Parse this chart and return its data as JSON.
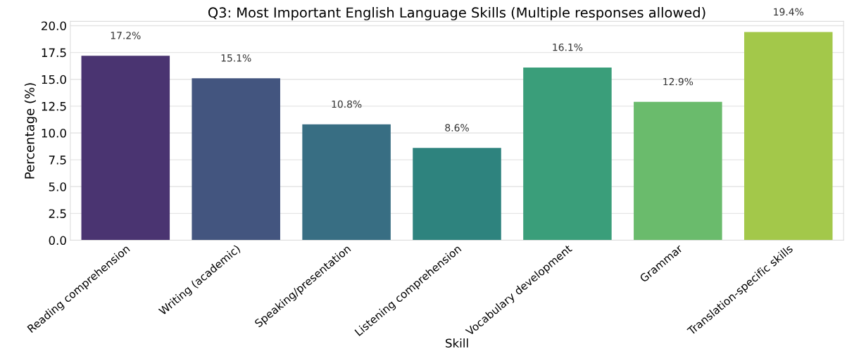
{
  "chart_data": {
    "type": "bar",
    "title": "Q3: Most Important English Language Skills (Multiple responses allowed)",
    "xlabel": "Skill",
    "ylabel": "Percentage (%)",
    "categories": [
      "Reading comprehension",
      "Writing (academic)",
      "Speaking/presentation",
      "Listening comprehension",
      "Vocabulary development",
      "Grammar",
      "Translation-specific skills"
    ],
    "values": [
      17.2,
      15.1,
      10.8,
      8.6,
      16.1,
      12.9,
      19.4
    ],
    "value_labels": [
      "17.2%",
      "15.1%",
      "10.8%",
      "8.6%",
      "16.1%",
      "12.9%",
      "19.4%"
    ],
    "colors": [
      "#4a3471",
      "#43557f",
      "#386e83",
      "#2e837e",
      "#3a9e7a",
      "#6abb6c",
      "#a3c84a"
    ],
    "ylim": [
      0,
      20.4
    ],
    "yticks": [
      {
        "value": 0,
        "label": "0.0"
      },
      {
        "value": 2.5,
        "label": "2.5"
      },
      {
        "value": 5,
        "label": "5.0"
      },
      {
        "value": 7.5,
        "label": "7.5"
      },
      {
        "value": 10,
        "label": "10.0"
      },
      {
        "value": 12.5,
        "label": "12.5"
      },
      {
        "value": 15,
        "label": "15.0"
      },
      {
        "value": 17.5,
        "label": "17.5"
      },
      {
        "value": 20,
        "label": "20.0"
      }
    ],
    "grid": "y"
  }
}
